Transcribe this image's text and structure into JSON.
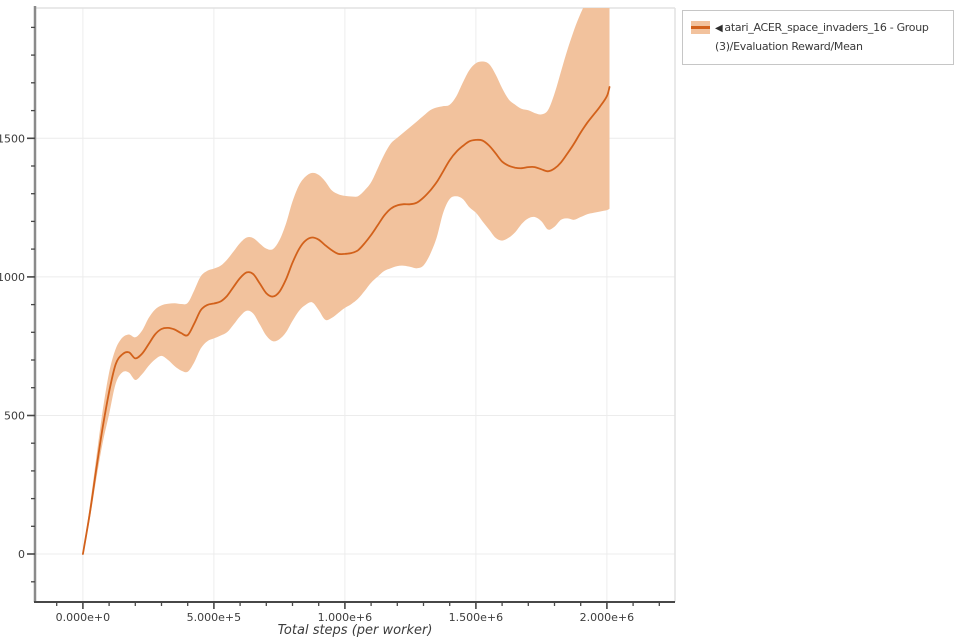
{
  "legend": {
    "collapse_icon": "◀",
    "items": [
      {
        "label": "atari_ACER_space_invaders_16 - Group(3)/Evaluation Reward/Mean",
        "line_color": "#d2611b",
        "band_color": "#f2c29d"
      }
    ]
  },
  "colors": {
    "line": "#d2611b",
    "band": "#f2c29d",
    "grid": "#ececec",
    "border": "#e2e2e2",
    "axis_left": "#8a8a8a",
    "axis_bottom": "#474747",
    "tick": "#474747",
    "tick_label": "#3c3c3c",
    "axis_title": "#3c3c3c",
    "legend_border": "#c6c6c6"
  },
  "chart_data": {
    "type": "line",
    "title": "",
    "xlabel": "Total steps (per worker)",
    "ylabel": "",
    "grid": true,
    "legend_position": "top-right",
    "xlim": [
      -183000,
      2260000
    ],
    "ylim": [
      -173,
      1970
    ],
    "x_major_ticks": [
      {
        "value": 0,
        "label": "0.000e+0"
      },
      {
        "value": 500000,
        "label": "5.000e+5"
      },
      {
        "value": 1000000,
        "label": "1.000e+6"
      },
      {
        "value": 1500000,
        "label": "1.500e+6"
      },
      {
        "value": 2000000,
        "label": "2.000e+6"
      }
    ],
    "x_minor_step": 100000,
    "y_major_ticks": [
      {
        "value": 0,
        "label": "0"
      },
      {
        "value": 500,
        "label": "500"
      },
      {
        "value": 1000,
        "label": "1000"
      },
      {
        "value": 1500,
        "label": "1500"
      }
    ],
    "y_minor_step": 100,
    "series": [
      {
        "name": "atari_ACER_space_invaders_16 - Group(3)/Evaluation Reward/Mean",
        "color": "#d2611b",
        "band_color": "#f2c29d",
        "point_format": [
          "step",
          "mean",
          "lower",
          "upper"
        ],
        "points": [
          [
            0,
            0,
            0,
            0
          ],
          [
            25000,
            140,
            120,
            165
          ],
          [
            50000,
            300,
            265,
            340
          ],
          [
            75000,
            455,
            400,
            515
          ],
          [
            100000,
            585,
            505,
            655
          ],
          [
            125000,
            685,
            615,
            740
          ],
          [
            150000,
            720,
            655,
            780
          ],
          [
            175000,
            728,
            655,
            792
          ],
          [
            200000,
            706,
            628,
            782
          ],
          [
            225000,
            722,
            648,
            805
          ],
          [
            250000,
            756,
            678,
            850
          ],
          [
            275000,
            792,
            702,
            882
          ],
          [
            300000,
            812,
            715,
            897
          ],
          [
            325000,
            816,
            700,
            903
          ],
          [
            350000,
            810,
            678,
            905
          ],
          [
            375000,
            797,
            662,
            902
          ],
          [
            400000,
            790,
            658,
            906
          ],
          [
            425000,
            832,
            692,
            952
          ],
          [
            450000,
            880,
            742,
            1002
          ],
          [
            475000,
            899,
            768,
            1022
          ],
          [
            500000,
            904,
            778,
            1030
          ],
          [
            525000,
            911,
            788,
            1040
          ],
          [
            550000,
            931,
            800,
            1062
          ],
          [
            575000,
            964,
            828,
            1092
          ],
          [
            600000,
            996,
            858,
            1122
          ],
          [
            625000,
            1016,
            878,
            1142
          ],
          [
            650000,
            1010,
            868,
            1140
          ],
          [
            675000,
            976,
            828,
            1120
          ],
          [
            700000,
            941,
            788,
            1102
          ],
          [
            725000,
            929,
            768,
            1100
          ],
          [
            750000,
            946,
            775,
            1132
          ],
          [
            775000,
            991,
            800,
            1192
          ],
          [
            800000,
            1051,
            841,
            1272
          ],
          [
            825000,
            1101,
            878,
            1331
          ],
          [
            850000,
            1131,
            899,
            1362
          ],
          [
            875000,
            1142,
            908,
            1375
          ],
          [
            900000,
            1134,
            880,
            1368
          ],
          [
            925000,
            1114,
            845,
            1344
          ],
          [
            950000,
            1096,
            852,
            1312
          ],
          [
            975000,
            1083,
            870,
            1298
          ],
          [
            1000000,
            1083,
            888,
            1292
          ],
          [
            1025000,
            1086,
            902,
            1290
          ],
          [
            1050000,
            1096,
            921,
            1291
          ],
          [
            1075000,
            1121,
            949,
            1312
          ],
          [
            1100000,
            1151,
            979,
            1341
          ],
          [
            1125000,
            1186,
            1001,
            1391
          ],
          [
            1150000,
            1221,
            1021,
            1441
          ],
          [
            1175000,
            1246,
            1031,
            1481
          ],
          [
            1200000,
            1258,
            1039,
            1502
          ],
          [
            1225000,
            1262,
            1040,
            1522
          ],
          [
            1250000,
            1262,
            1036,
            1541
          ],
          [
            1275000,
            1268,
            1031,
            1561
          ],
          [
            1300000,
            1286,
            1041,
            1581
          ],
          [
            1325000,
            1311,
            1081,
            1601
          ],
          [
            1350000,
            1341,
            1141,
            1611
          ],
          [
            1375000,
            1381,
            1231,
            1616
          ],
          [
            1400000,
            1421,
            1281,
            1621
          ],
          [
            1425000,
            1451,
            1291,
            1651
          ],
          [
            1450000,
            1472,
            1281,
            1701
          ],
          [
            1475000,
            1489,
            1251,
            1746
          ],
          [
            1500000,
            1494,
            1231,
            1771
          ],
          [
            1525000,
            1492,
            1201,
            1777
          ],
          [
            1550000,
            1474,
            1171,
            1768
          ],
          [
            1575000,
            1446,
            1141,
            1731
          ],
          [
            1600000,
            1416,
            1131,
            1681
          ],
          [
            1625000,
            1401,
            1141,
            1641
          ],
          [
            1650000,
            1394,
            1161,
            1621
          ],
          [
            1675000,
            1392,
            1191,
            1606
          ],
          [
            1700000,
            1396,
            1211,
            1601
          ],
          [
            1725000,
            1396,
            1216,
            1591
          ],
          [
            1750000,
            1388,
            1201,
            1586
          ],
          [
            1775000,
            1381,
            1171,
            1601
          ],
          [
            1800000,
            1391,
            1181,
            1661
          ],
          [
            1825000,
            1413,
            1206,
            1741
          ],
          [
            1850000,
            1446,
            1211,
            1821
          ],
          [
            1875000,
            1481,
            1206,
            1891
          ],
          [
            1900000,
            1521,
            1216,
            1951
          ],
          [
            1925000,
            1556,
            1226,
            2000
          ],
          [
            1950000,
            1586,
            1231,
            2035
          ],
          [
            1975000,
            1616,
            1236,
            2065
          ],
          [
            2000000,
            1652,
            1241,
            2085
          ],
          [
            2010000,
            1685,
            1246,
            2092
          ]
        ]
      }
    ]
  }
}
